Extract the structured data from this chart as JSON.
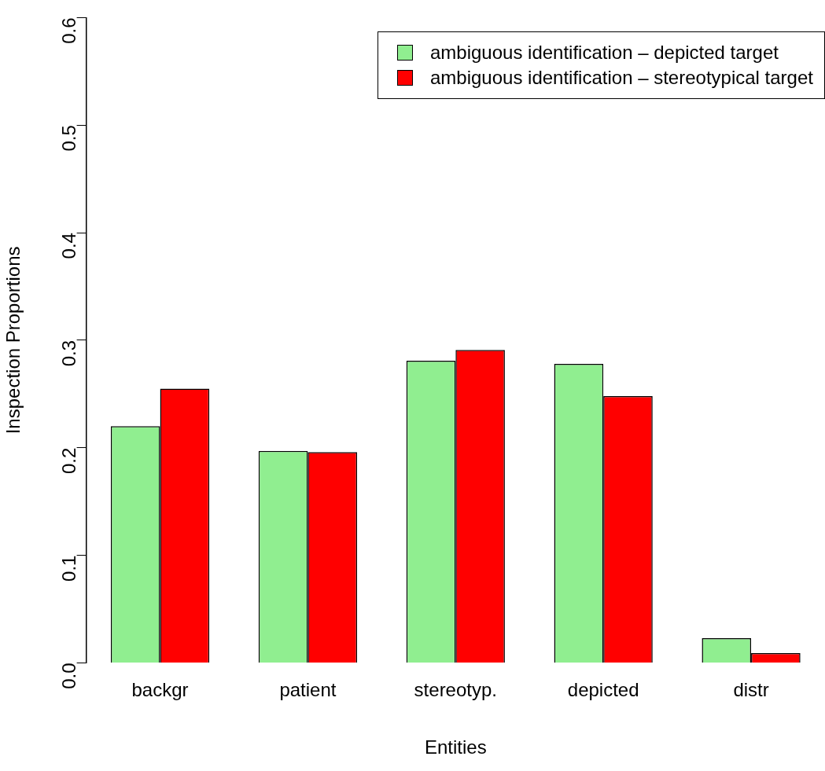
{
  "chart_data": {
    "type": "bar",
    "xlabel": "Entities",
    "ylabel": "Inspection Proportions",
    "categories": [
      "backgr",
      "patient",
      "stereotyp.",
      "depicted",
      "distr"
    ],
    "series": [
      {
        "name": "ambiguous identification – depicted target",
        "color": "#90ee90",
        "values": [
          0.22,
          0.197,
          0.281,
          0.278,
          0.023
        ]
      },
      {
        "name": "ambiguous identification – stereotypical target",
        "color": "#ff0000",
        "values": [
          0.255,
          0.196,
          0.291,
          0.248,
          0.009
        ]
      }
    ],
    "ylim": [
      0,
      0.6
    ],
    "yticks": [
      {
        "value": 0,
        "label": "0.0"
      },
      {
        "value": 0.1,
        "label": "0.1"
      },
      {
        "value": 0.2,
        "label": "0.2"
      },
      {
        "value": 0.3,
        "label": "0.3"
      },
      {
        "value": 0.4,
        "label": "0.4"
      },
      {
        "value": 0.5,
        "label": "0.5"
      },
      {
        "value": 0.6,
        "label": "0.6"
      }
    ],
    "grid": false,
    "legend": "top right"
  }
}
